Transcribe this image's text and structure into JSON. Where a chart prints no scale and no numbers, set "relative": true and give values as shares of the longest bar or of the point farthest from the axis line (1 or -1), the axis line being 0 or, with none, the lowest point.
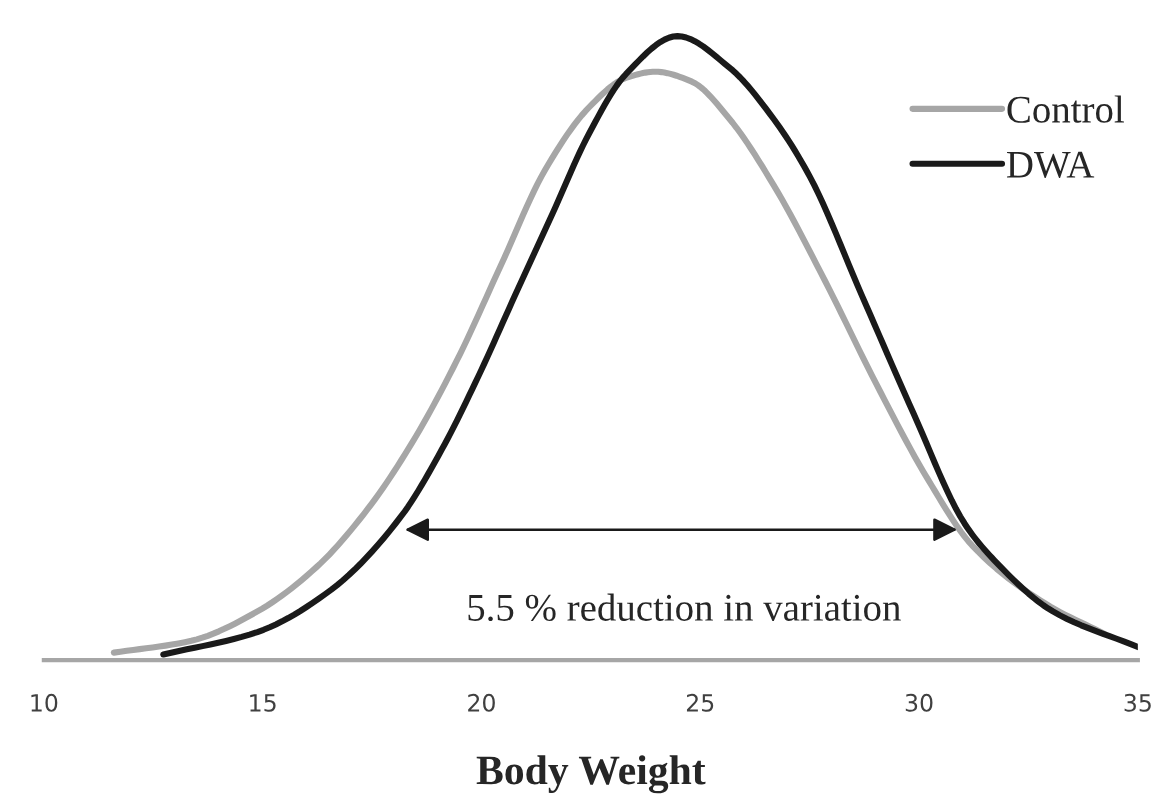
{
  "chart_data": {
    "type": "line",
    "relative": true,
    "xlabel": "Body Weight",
    "xlim": [
      10,
      35
    ],
    "xticks": [
      10,
      15,
      20,
      25,
      30,
      35
    ],
    "series": [
      {
        "name": "Control",
        "color": "#a6a6a6",
        "x": [
          11.6,
          13.37,
          14.88,
          16.23,
          17.41,
          18.42,
          19.43,
          20.44,
          21.45,
          22.46,
          23.3,
          23.97,
          24.81,
          25.66,
          26.67,
          27.85,
          29.02,
          30.2,
          31.21,
          32.9,
          34.24
        ],
        "values": [
          0.012,
          0.031,
          0.078,
          0.149,
          0.243,
          0.349,
          0.479,
          0.632,
          0.785,
          0.886,
          0.933,
          0.943,
          0.927,
          0.868,
          0.762,
          0.608,
          0.443,
          0.29,
          0.184,
          0.09,
          0.042
        ]
      },
      {
        "name": "DWA",
        "color": "#1a1a1a",
        "x": [
          12.73,
          14.88,
          16.57,
          18.17,
          19.09,
          19.93,
          20.77,
          21.62,
          22.46,
          23.3,
          24.48,
          25.66,
          26.67,
          27.51,
          28.69,
          29.87,
          31.04,
          31.72,
          33.06,
          35.0
        ],
        "values": [
          0.009,
          0.045,
          0.113,
          0.231,
          0.337,
          0.455,
          0.585,
          0.715,
          0.844,
          0.939,
          1.0,
          0.95,
          0.868,
          0.774,
          0.585,
          0.396,
          0.219,
          0.16,
          0.078,
          0.021
        ]
      }
    ],
    "annotations": [
      "5.5 % reduction in variation"
    ],
    "legend": "top right",
    "grid": false
  }
}
